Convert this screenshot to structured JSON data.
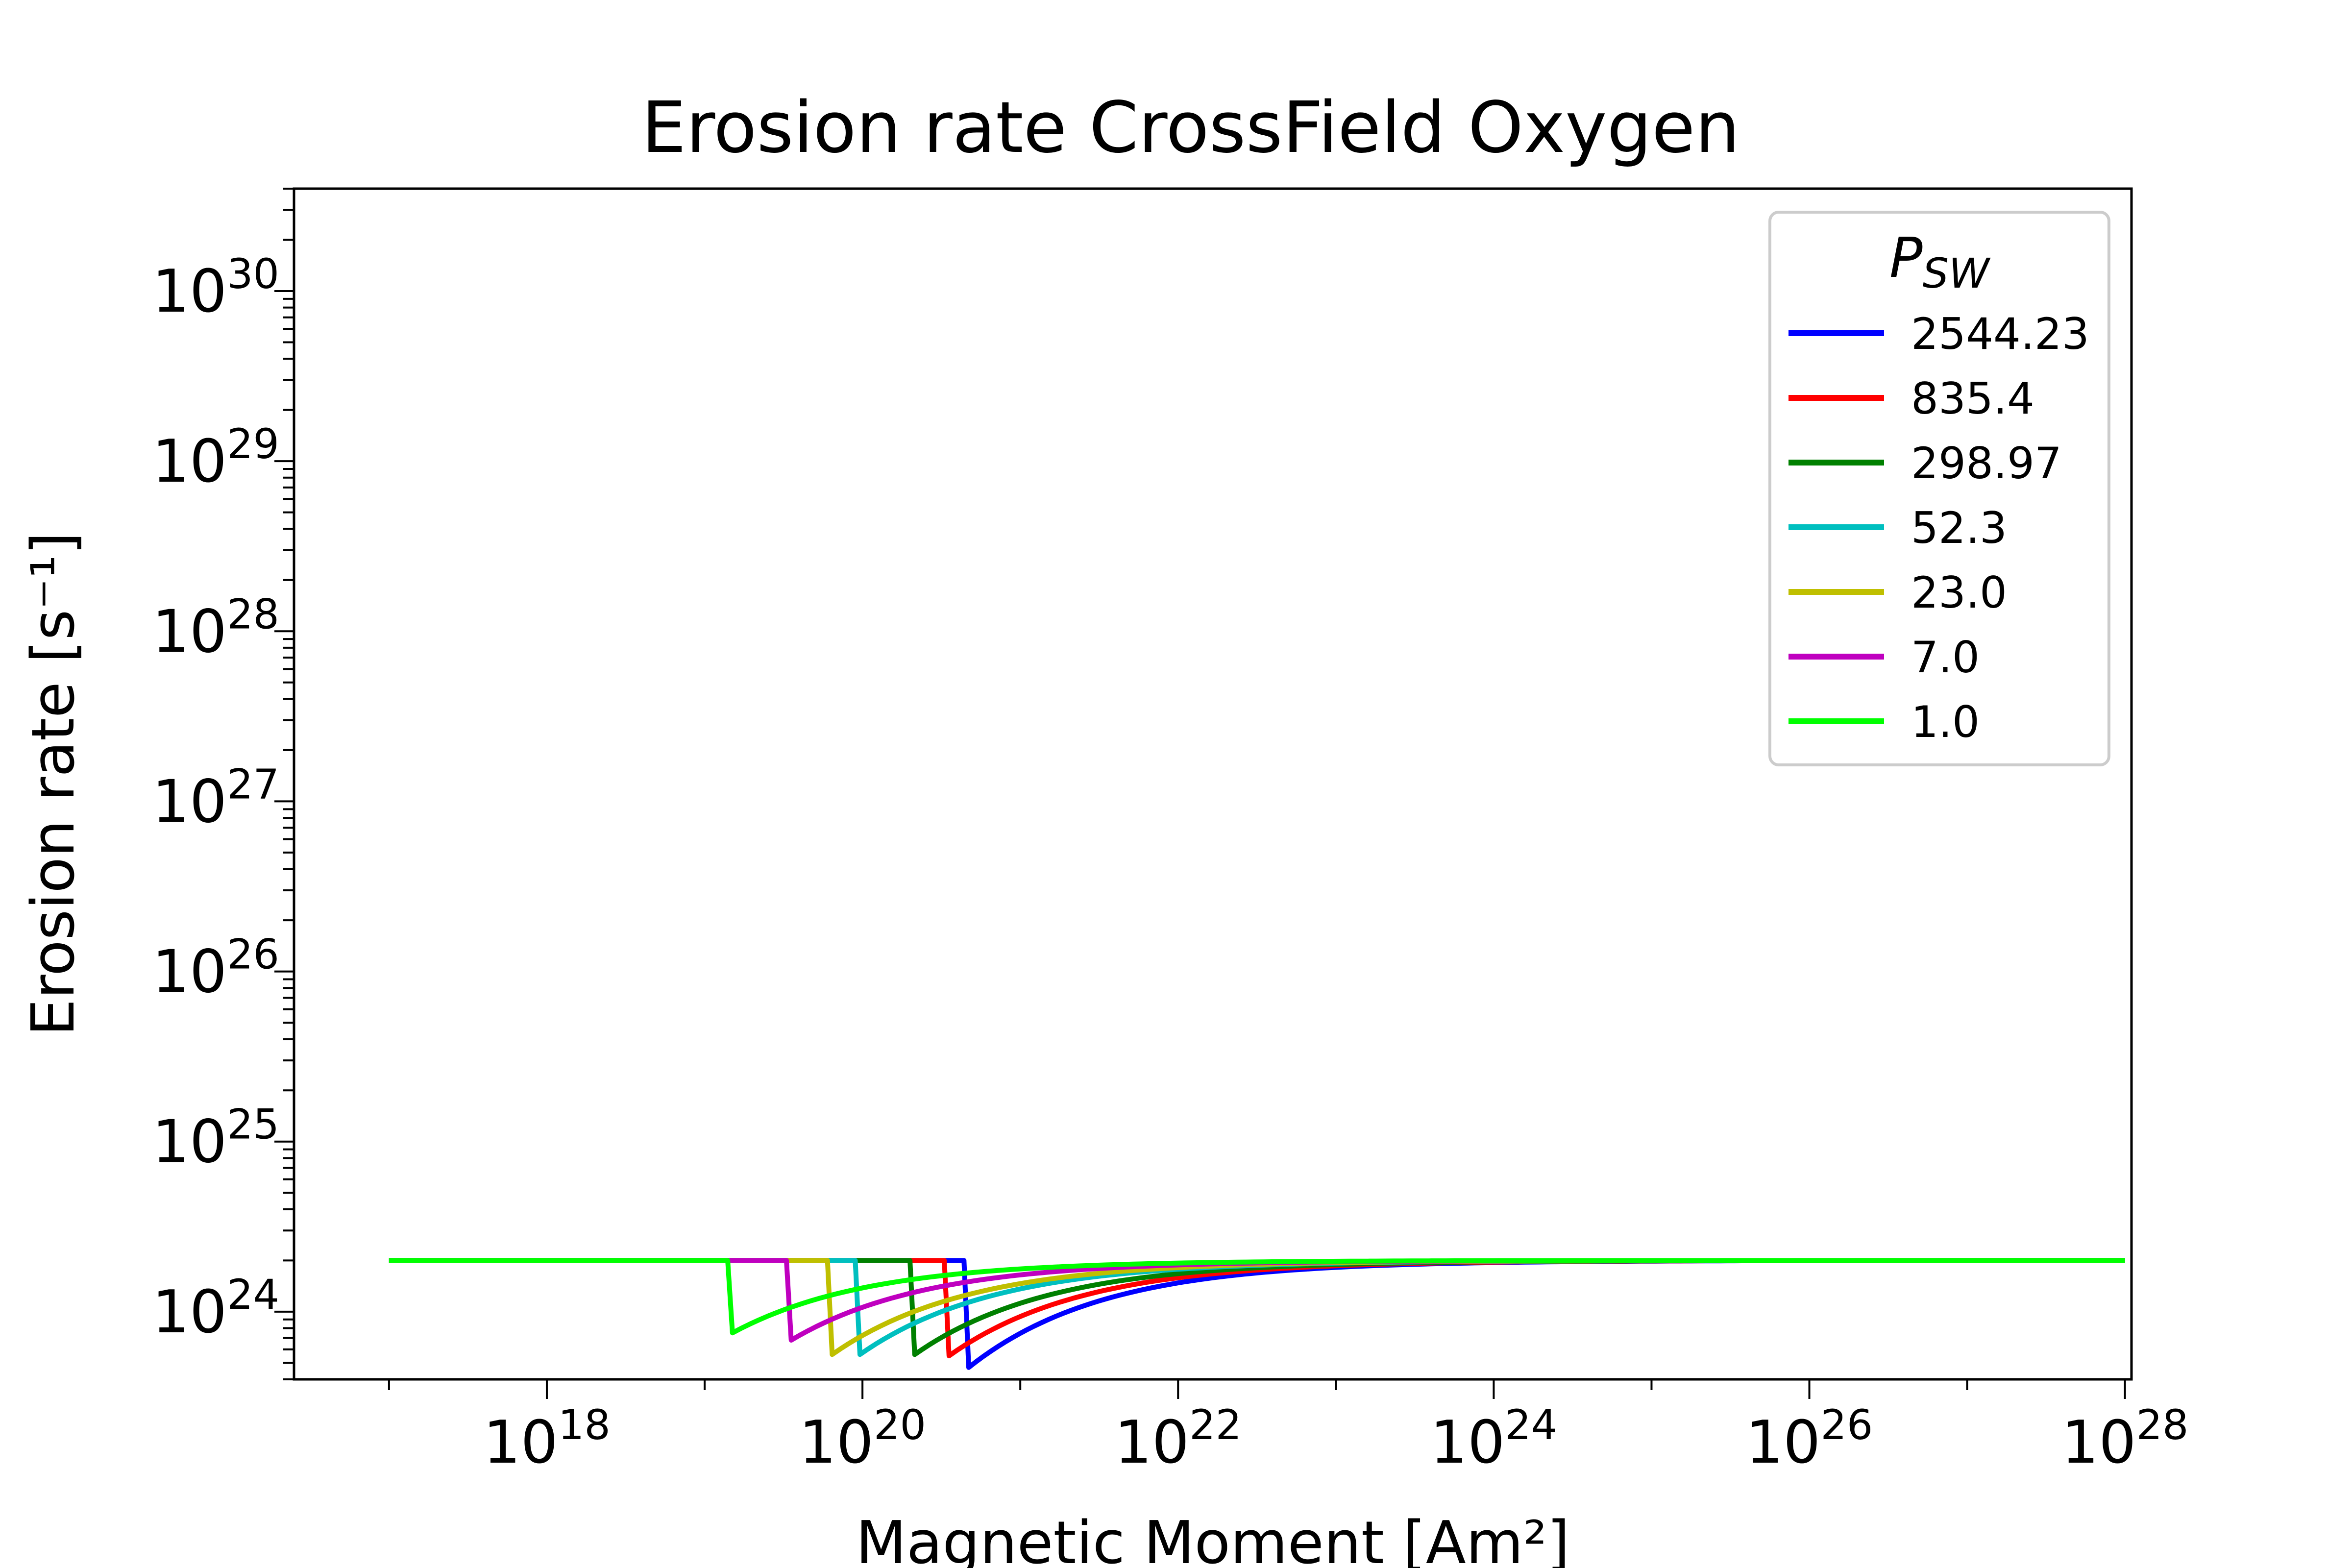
{
  "chart_data": {
    "type": "line",
    "title": "Erosion rate CrossField Oxygen",
    "xlabel": "Magnetic Moment [Am²]",
    "ylabel": "Erosion rate [s⁻¹]",
    "xscale": "log",
    "yscale": "log",
    "xlim": [
      2.5e+16,
      1.1e+28
    ],
    "ylim": [
      4e+23,
      4e+30
    ],
    "xticks": [
      {
        "value": 1e+18,
        "base": "10",
        "exp": "18"
      },
      {
        "value": 1e+20,
        "base": "10",
        "exp": "20"
      },
      {
        "value": 1e+22,
        "base": "10",
        "exp": "22"
      },
      {
        "value": 1e+24,
        "base": "10",
        "exp": "24"
      },
      {
        "value": 1e+26,
        "base": "10",
        "exp": "26"
      },
      {
        "value": 1e+28,
        "base": "10",
        "exp": "28"
      }
    ],
    "yticks": [
      {
        "value": 1e+24,
        "base": "10",
        "exp": "24"
      },
      {
        "value": 1e+25,
        "base": "10",
        "exp": "25"
      },
      {
        "value": 1e+26,
        "base": "10",
        "exp": "26"
      },
      {
        "value": 1e+27,
        "base": "10",
        "exp": "27"
      },
      {
        "value": 1e+28,
        "base": "10",
        "exp": "28"
      },
      {
        "value": 1e+29,
        "base": "10",
        "exp": "29"
      },
      {
        "value": 1e+30,
        "base": "10",
        "exp": "30"
      }
    ],
    "grid": false,
    "legend": {
      "title_main": "P",
      "title_sub": "SW",
      "placement": "top-right"
    },
    "plateau": 2e+24,
    "x_start": 1e+17,
    "x_end": 1e+28,
    "series": [
      {
        "name": "2544.23",
        "color": "#0000ff",
        "x_drop": 4.4e+20,
        "y_min": 4.7e+23
      },
      {
        "name": "835.4",
        "color": "#ff0000",
        "x_drop": 3.3e+20,
        "y_min": 5.5e+23
      },
      {
        "name": "298.97",
        "color": "#008000",
        "x_drop": 2e+20,
        "y_min": 5.6e+23
      },
      {
        "name": "52.3",
        "color": "#00bfbf",
        "x_drop": 9e+19,
        "y_min": 5.6e+23
      },
      {
        "name": "23.0",
        "color": "#bfbf00",
        "x_drop": 6e+19,
        "y_min": 5.6e+23
      },
      {
        "name": "7.0",
        "color": "#bf00bf",
        "x_drop": 3.3e+19,
        "y_min": 6.8e+23
      },
      {
        "name": "1.0",
        "color": "#00ff00",
        "x_drop": 1.4e+19,
        "y_min": 7.5e+23
      }
    ]
  }
}
